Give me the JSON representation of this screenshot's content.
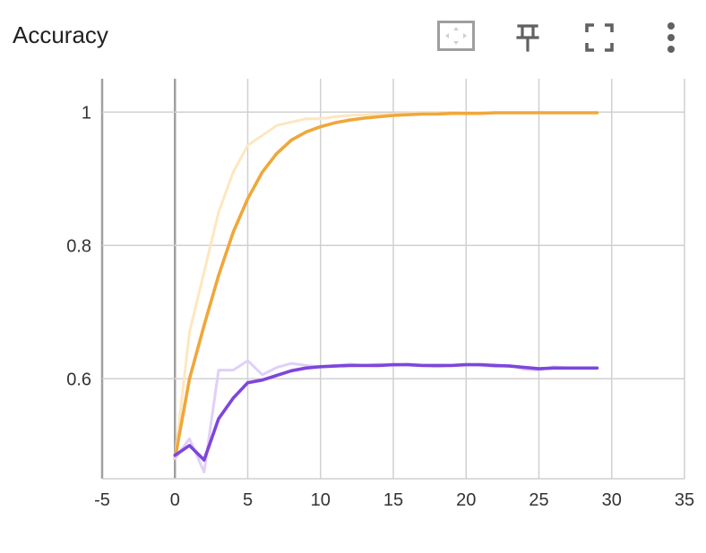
{
  "header": {
    "title": "Accuracy",
    "icons": [
      "fit-domain-icon",
      "pin-icon",
      "fullscreen-icon",
      "more-vert-icon"
    ]
  },
  "colors": {
    "orange": "#f0a73a",
    "orange_raw": "#fde7c0",
    "purple": "#7e46db",
    "purple_raw": "#e0d0f7",
    "grid": "#d0d0d0",
    "axis": "#a0a0a0"
  },
  "chart_data": {
    "type": "line",
    "title": "Accuracy",
    "xlabel": "",
    "ylabel": "",
    "xlim": [
      -5,
      35
    ],
    "ylim": [
      0.45,
      1.05
    ],
    "x_ticks": [
      "-5",
      "0",
      "5",
      "10",
      "15",
      "20",
      "25",
      "30",
      "35"
    ],
    "y_ticks": [
      "0.6",
      "0.8",
      "1"
    ],
    "grid": true,
    "series": [
      {
        "style": "raw",
        "color": "#fde7c0",
        "x": [
          0,
          1,
          2,
          3,
          4,
          5,
          6,
          7,
          8,
          9,
          10,
          11,
          12,
          13,
          14,
          15,
          16,
          17,
          18,
          19,
          20,
          21,
          22,
          23,
          24,
          25,
          26,
          27,
          28,
          29
        ],
        "y": [
          0.48,
          0.67,
          0.76,
          0.85,
          0.91,
          0.95,
          0.965,
          0.98,
          0.985,
          0.99,
          0.99,
          0.993,
          0.995,
          0.996,
          0.997,
          0.997,
          0.998,
          0.998,
          0.998,
          0.998,
          0.999,
          0.999,
          0.999,
          0.999,
          0.999,
          0.999,
          0.999,
          0.999,
          0.999,
          0.999
        ]
      },
      {
        "style": "smoothed",
        "color": "#f0a73a",
        "x": [
          0,
          1,
          2,
          3,
          4,
          5,
          6,
          7,
          8,
          9,
          10,
          11,
          12,
          13,
          14,
          15,
          16,
          17,
          18,
          19,
          20,
          21,
          22,
          23,
          24,
          25,
          26,
          27,
          28,
          29
        ],
        "y": [
          0.48,
          0.6,
          0.68,
          0.755,
          0.82,
          0.87,
          0.91,
          0.938,
          0.958,
          0.97,
          0.978,
          0.984,
          0.988,
          0.991,
          0.993,
          0.995,
          0.996,
          0.997,
          0.997,
          0.998,
          0.998,
          0.998,
          0.999,
          0.999,
          0.999,
          0.999,
          0.999,
          0.999,
          0.999,
          0.999
        ]
      },
      {
        "style": "raw",
        "color": "#e0d0f7",
        "x": [
          0,
          1,
          2,
          3,
          4,
          5,
          6,
          7,
          8,
          9,
          10,
          11,
          12,
          13,
          14,
          15,
          16,
          17,
          18,
          19,
          20,
          21,
          22,
          23,
          24,
          25,
          26,
          27,
          28,
          29
        ],
        "y": [
          0.48,
          0.51,
          0.46,
          0.613,
          0.613,
          0.627,
          0.606,
          0.617,
          0.623,
          0.62,
          0.618,
          0.62,
          0.622,
          0.62,
          0.622,
          0.62,
          0.622,
          0.62,
          0.618,
          0.62,
          0.622,
          0.62,
          0.618,
          0.62,
          0.614,
          0.613,
          0.618,
          0.616,
          0.616,
          0.616
        ]
      },
      {
        "style": "smoothed",
        "color": "#7e46db",
        "x": [
          0,
          1,
          2,
          3,
          4,
          5,
          6,
          7,
          8,
          9,
          10,
          11,
          12,
          13,
          14,
          15,
          16,
          17,
          18,
          19,
          20,
          21,
          22,
          23,
          24,
          25,
          26,
          27,
          28,
          29
        ],
        "y": [
          0.485,
          0.5,
          0.478,
          0.54,
          0.571,
          0.594,
          0.598,
          0.605,
          0.612,
          0.616,
          0.618,
          0.619,
          0.62,
          0.62,
          0.62,
          0.621,
          0.621,
          0.62,
          0.62,
          0.62,
          0.621,
          0.621,
          0.62,
          0.619,
          0.617,
          0.615,
          0.616,
          0.616,
          0.616,
          0.616
        ]
      }
    ]
  }
}
